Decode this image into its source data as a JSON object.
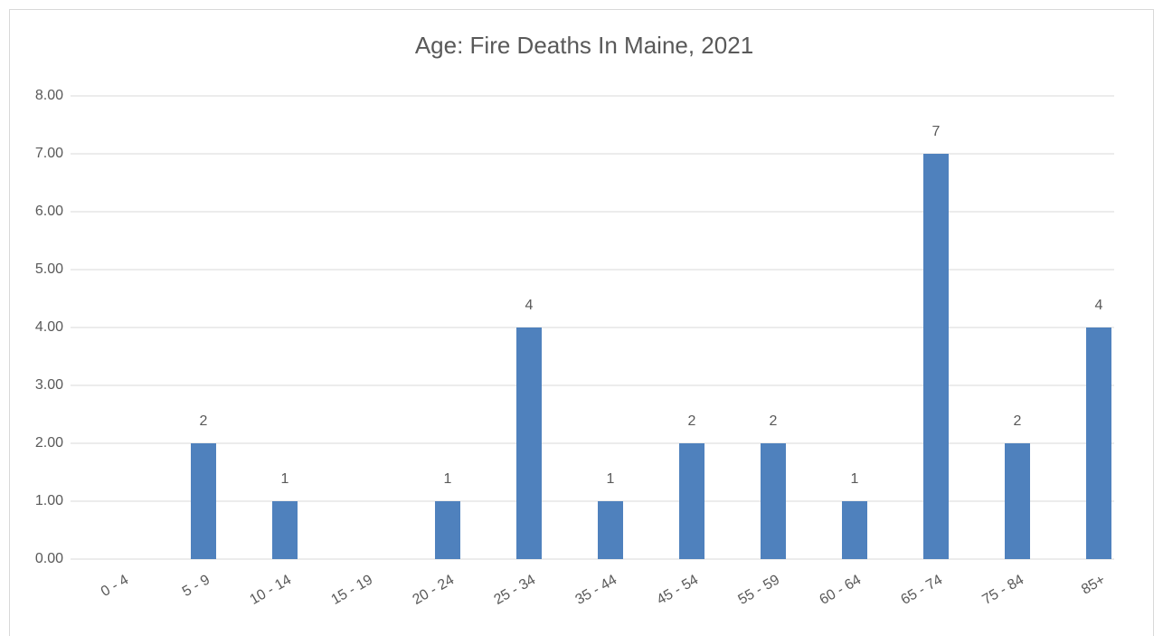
{
  "chart_data": {
    "type": "bar",
    "title": "Age: Fire Deaths In Maine, 2021",
    "categories": [
      "0 - 4",
      "5 - 9",
      "10 - 14",
      "15 - 19",
      "20 - 24",
      "25 - 34",
      "35 - 44",
      "45 - 54",
      "55 - 59",
      "60 - 64",
      "65 - 74",
      "75 - 84",
      "85+"
    ],
    "values": [
      0,
      2,
      1,
      0,
      1,
      4,
      1,
      2,
      2,
      1,
      7,
      2,
      4
    ],
    "color": "#4f81bd",
    "ylim": [
      0,
      8
    ],
    "yticks": [
      {
        "value": 0,
        "label": "0.00"
      },
      {
        "value": 1,
        "label": "1.00"
      },
      {
        "value": 2,
        "label": "2.00"
      },
      {
        "value": 3,
        "label": "3.00"
      },
      {
        "value": 4,
        "label": "4.00"
      },
      {
        "value": 5,
        "label": "5.00"
      },
      {
        "value": 6,
        "label": "6.00"
      },
      {
        "value": 7,
        "label": "7.00"
      },
      {
        "value": 8,
        "label": "8.00"
      }
    ],
    "grid": true
  }
}
